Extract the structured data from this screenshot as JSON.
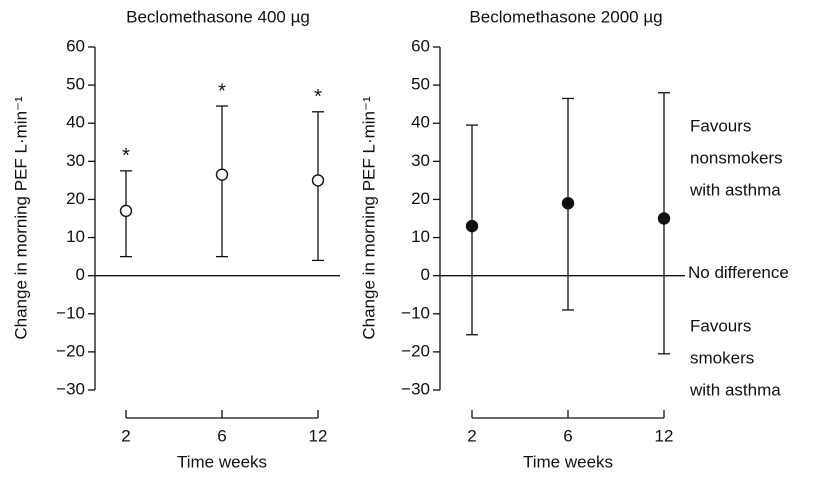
{
  "chart_data": [
    {
      "type": "errorbar",
      "title": "Beclomethasone 400 µg",
      "xlabel": "Time weeks",
      "ylabel": "Change in morning PEF L·min⁻¹",
      "categories": [
        "2",
        "6",
        "12"
      ],
      "series": [
        {
          "values": [
            17,
            26.5,
            25
          ],
          "lower": [
            5,
            5,
            4
          ],
          "upper": [
            27.5,
            44.5,
            43
          ],
          "marker": "open",
          "color": "#111111"
        }
      ],
      "value_labels": [
        "*",
        "*",
        "*"
      ],
      "reference_line": 0,
      "ylim": [
        -30,
        60
      ],
      "yticks": [
        {
          "value": -30,
          "label": "−30"
        },
        {
          "value": -20,
          "label": "−20"
        },
        {
          "value": -10,
          "label": "−10"
        },
        0,
        10,
        20,
        30,
        40,
        50,
        60
      ]
    },
    {
      "type": "errorbar",
      "title": "Beclomethasone 2000 µg",
      "xlabel": "Time weeks",
      "ylabel": "Change in morning PEF L·min⁻¹",
      "categories": [
        "2",
        "6",
        "12"
      ],
      "series": [
        {
          "values": [
            13,
            19,
            15
          ],
          "lower": [
            -15.5,
            -9,
            -20.5
          ],
          "upper": [
            39.5,
            46.5,
            48
          ],
          "marker": "filled",
          "color": "#111111"
        }
      ],
      "reference_line": 0,
      "reference_label": "No difference",
      "annotations": [
        [
          "Favours",
          "nonsmokers",
          "with asthma"
        ],
        [
          "Favours",
          "smokers",
          "with asthma"
        ]
      ],
      "ylim": [
        -30,
        60
      ],
      "yticks": [
        {
          "value": -30,
          "label": "−30"
        },
        {
          "value": -20,
          "label": "−20"
        },
        {
          "value": -10,
          "label": "−10"
        },
        0,
        10,
        20,
        30,
        40,
        50,
        60
      ]
    }
  ]
}
